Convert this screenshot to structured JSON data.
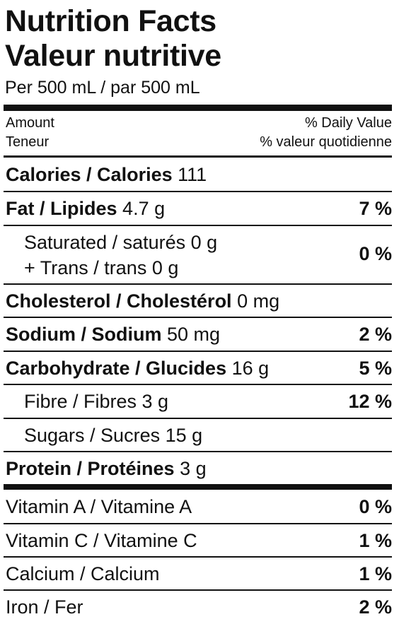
{
  "header": {
    "title_en": "Nutrition Facts",
    "title_fr": "Valeur nutritive",
    "serving": "Per 500 mL / par 500 mL"
  },
  "columns": {
    "amount_en": "Amount",
    "amount_fr": "Teneur",
    "dv_en": "% Daily Value",
    "dv_fr": "% valeur quotidienne"
  },
  "nutrients": {
    "calories": {
      "label": "Calories / Calories",
      "amount": "111"
    },
    "fat": {
      "label": "Fat / Lipides",
      "amount": "4.7 g",
      "dv": "7 %"
    },
    "saturated": {
      "line1": "Saturated / saturés 0 g",
      "line2": "+ Trans / trans 0 g",
      "dv": "0 %"
    },
    "cholesterol": {
      "label": "Cholesterol / Cholestérol",
      "amount": "0 mg"
    },
    "sodium": {
      "label": "Sodium / Sodium",
      "amount": "50 mg",
      "dv": "2 %"
    },
    "carbohydrate": {
      "label": "Carbohydrate / Glucides",
      "amount": "16 g",
      "dv": "5 %"
    },
    "fibre": {
      "label": "Fibre / Fibres 3 g",
      "dv": "12 %"
    },
    "sugars": {
      "label": "Sugars / Sucres 15 g"
    },
    "protein": {
      "label": "Protein / Protéines",
      "amount": "3 g"
    }
  },
  "vitamins": [
    {
      "label": "Vitamin A / Vitamine A",
      "dv": "0 %"
    },
    {
      "label": "Vitamin C / Vitamine C",
      "dv": "1 %"
    },
    {
      "label": "Calcium / Calcium",
      "dv": "1 %"
    },
    {
      "label": "Iron / Fer",
      "dv": "2 %"
    }
  ]
}
